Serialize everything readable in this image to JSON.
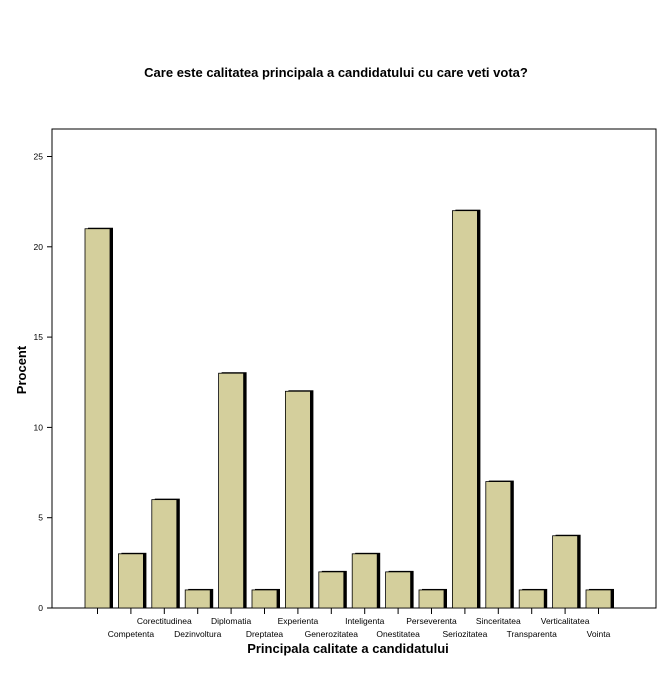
{
  "chart_data": {
    "type": "bar",
    "title": "Care este calitatea principala a candidatului cu care veti vota?",
    "xlabel": "Principala calitate a candidatului",
    "ylabel": "Procent",
    "ylim": [
      0,
      25
    ],
    "yticks": [
      0,
      5,
      10,
      15,
      20,
      25
    ],
    "grid": false,
    "categories": [
      "",
      "Competenta",
      "Corectitudinea",
      "Dezinvoltura",
      "Diplomatia",
      "Dreptatea",
      "Experienta",
      "Generozitatea",
      "Inteligenta",
      "Onestitatea",
      "Perseverenta",
      "Seriozitatea",
      "Sinceritatea",
      "Transparenta",
      "Verticalitatea",
      "Vointa"
    ],
    "values": [
      21,
      3,
      6,
      1,
      13,
      1,
      12,
      2,
      3,
      2,
      1,
      22,
      7,
      1,
      4,
      1
    ],
    "bar_color": "#d4cf9c",
    "shadow_color": "#000000"
  }
}
